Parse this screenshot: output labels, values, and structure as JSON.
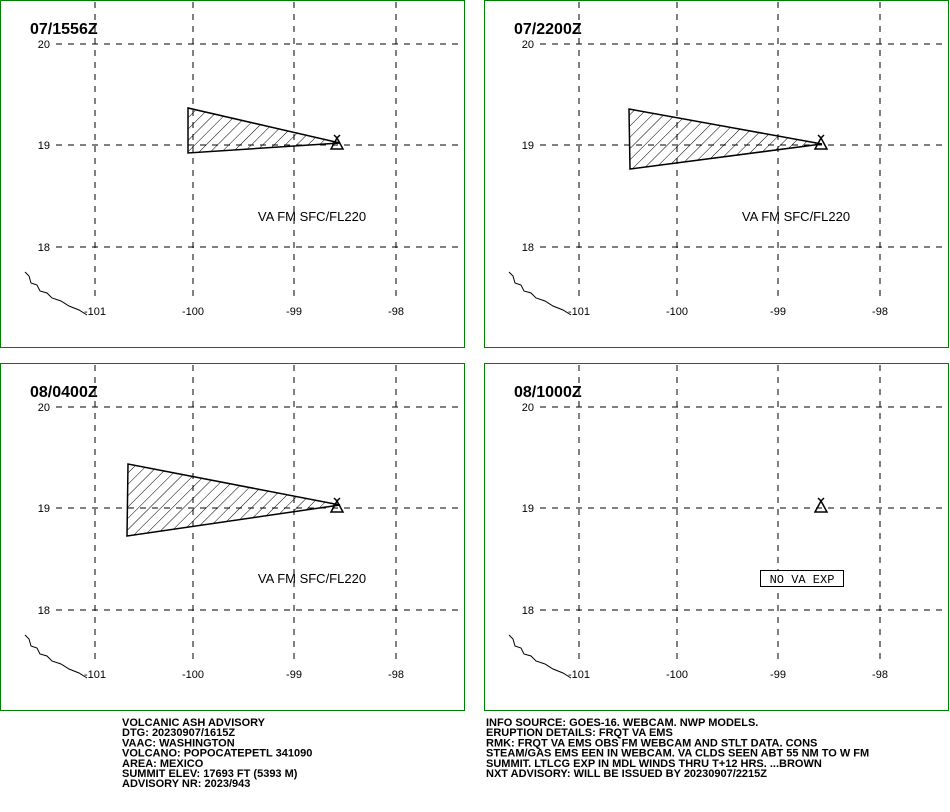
{
  "panels": [
    {
      "title": "07/1556Z",
      "lat_labels": [
        "20",
        "19",
        "18"
      ],
      "lon_labels": [
        "-101",
        "-100",
        "-99",
        "-98"
      ],
      "note": "VA FM SFC/FL220"
    },
    {
      "title": "07/2200Z",
      "lat_labels": [
        "20",
        "19",
        "18"
      ],
      "lon_labels": [
        "-101",
        "-100",
        "-99",
        "-98"
      ],
      "note": "VA FM SFC/FL220"
    },
    {
      "title": "08/0400Z",
      "lat_labels": [
        "20",
        "19",
        "18"
      ],
      "lon_labels": [
        "-101",
        "-100",
        "-99",
        "-98"
      ],
      "note": "VA FM SFC/FL220"
    },
    {
      "title": "08/1000Z",
      "lat_labels": [
        "20",
        "19",
        "18"
      ],
      "lon_labels": [
        "-101",
        "-100",
        "-99",
        "-98"
      ],
      "note": "NO VA EXP"
    }
  ],
  "advisory_left": [
    "VOLCANIC ASH ADVISORY",
    "DTG: 20230907/1615Z",
    "VAAC: WASHINGTON",
    "VOLCANO: POPOCATEPETL 341090",
    "AREA: MEXICO",
    "SUMMIT ELEV: 17693 FT (5393 M)",
    "ADVISORY NR: 2023/943"
  ],
  "advisory_right": [
    "INFO SOURCE: GOES-16. WEBCAM. NWP MODELS.",
    "ERUPTION DETAILS: FRQT VA EMS",
    "RMK: FRQT VA EMS OBS FM WEBCAM AND STLT DATA. CONS",
    "STEAM/GAS EMS EEN IN WEBCAM. VA CLDS SEEN ABT 55 NM TO W FM",
    "SUMMIT. LTLCG EXP IN MDL WINDS THRU T+12 HRS. ...BROWN",
    "NXT ADVISORY: WILL BE ISSUED BY 20230907/2215Z"
  ]
}
